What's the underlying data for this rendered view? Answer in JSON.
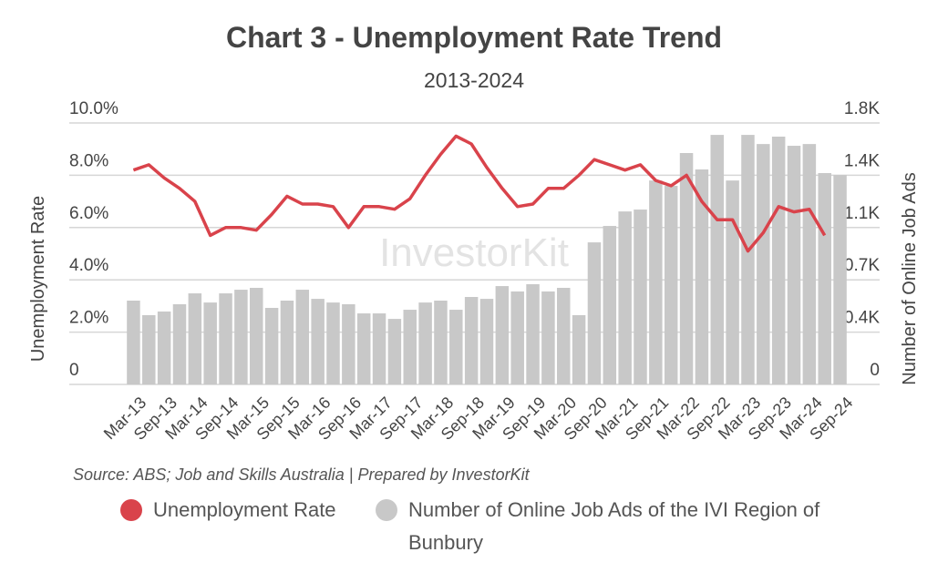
{
  "chart_data": {
    "type": "bar_line",
    "title": "Chart 3 - Unemployment Rate Trend",
    "subtitle": "2013-2024",
    "y_label": "Unemployment Rate",
    "y2_label": "Number of Online Job Ads",
    "source": "Source: ABS; Job and Skills Australia | Prepared by InvestorKit",
    "watermark": "InvestorKit",
    "categories": [
      "Mar-13",
      null,
      "Sep-13",
      null,
      "Mar-14",
      null,
      "Sep-14",
      null,
      "Mar-15",
      null,
      "Sep-15",
      null,
      "Mar-16",
      null,
      "Sep-16",
      null,
      "Mar-17",
      null,
      "Sep-17",
      null,
      "Mar-18",
      null,
      "Sep-18",
      null,
      "Mar-19",
      null,
      "Sep-19",
      null,
      "Mar-20",
      null,
      "Sep-20",
      null,
      "Mar-21",
      null,
      "Sep-21",
      null,
      "Mar-22",
      null,
      "Sep-22",
      null,
      "Mar-23",
      null,
      "Sep-23",
      null,
      "Mar-24",
      null,
      "Sep-24"
    ],
    "series": [
      {
        "name": "Number of Online Job Ads of the IVI Region of Bunbury",
        "type": "bar",
        "axis": "y2",
        "color": "#c8c8c8",
        "values": [
          577,
          477,
          502,
          552,
          627,
          564,
          627,
          652,
          665,
          527,
          577,
          652,
          589,
          564,
          552,
          489,
          489,
          451,
          514,
          564,
          577,
          514,
          602,
          589,
          677,
          640,
          690,
          640,
          665,
          477,
          978,
          1091,
          1191,
          1204,
          1404,
          1367,
          1593,
          1480,
          1718,
          1404,
          1718,
          1655,
          1706,
          1643,
          1655,
          1455,
          1442
        ]
      },
      {
        "name": "Unemployment Rate",
        "type": "line",
        "color": "#d9434b",
        "values": [
          8.2,
          8.4,
          7.9,
          7.5,
          7.0,
          5.7,
          6.0,
          6.0,
          5.9,
          6.5,
          7.2,
          6.9,
          6.9,
          6.8,
          6.0,
          6.8,
          6.8,
          6.7,
          7.1,
          8.0,
          8.8,
          9.5,
          9.2,
          8.3,
          7.5,
          6.8,
          6.9,
          7.5,
          7.5,
          8.0,
          8.6,
          8.4,
          8.2,
          8.4,
          7.8,
          7.6,
          8.0,
          7.0,
          6.3,
          6.3,
          5.1,
          5.8,
          6.8,
          6.6,
          6.7,
          5.7,
          null
        ]
      }
    ],
    "ylim": [
      0,
      10
    ],
    "yticks": [
      0,
      {
        "value": 2,
        "label": "2.0%"
      },
      {
        "value": 4,
        "label": "4.0%"
      },
      {
        "value": 6,
        "label": "6.0%"
      },
      {
        "value": 8,
        "label": "8.0%"
      },
      {
        "value": 10,
        "label": "10.0%"
      }
    ],
    "y2lim": [
      0,
      1800
    ],
    "y2ticks": [
      0,
      {
        "value": 360,
        "label": "0.4K"
      },
      {
        "value": 720,
        "label": "0.7K"
      },
      {
        "value": 1080,
        "label": "1.1K"
      },
      {
        "value": 1440,
        "label": "1.4K"
      },
      {
        "value": 1800,
        "label": "1.8K"
      }
    ],
    "grid": true
  }
}
